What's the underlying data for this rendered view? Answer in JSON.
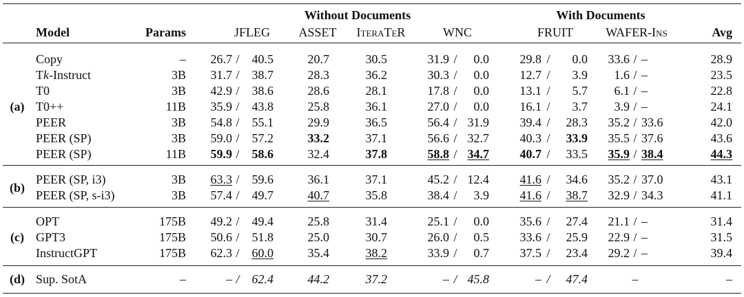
{
  "table": {
    "header": {
      "groups": [
        "Without Documents",
        "With Documents"
      ],
      "columns": [
        {
          "label": "Model",
          "bold": true
        },
        {
          "label": "Params",
          "bold": true
        },
        {
          "label": "JFLEG"
        },
        {
          "label": "ASSET"
        },
        {
          "label": "IteraTeR",
          "smallcaps": true
        },
        {
          "label": "WNC"
        },
        {
          "label": "FRUIT"
        },
        {
          "label": "WAFER-Ins",
          "smallcaps": true
        },
        {
          "label": "Avg",
          "bold": true
        }
      ]
    },
    "separator": "/",
    "groups": [
      {
        "label": "(a)",
        "rows": [
          {
            "model": "Copy",
            "params": "–",
            "cells": [
              [
                "26.7",
                "40.5"
              ],
              "20.7",
              "30.5",
              [
                "31.9",
                "0.0"
              ],
              [
                "29.8",
                "0.0"
              ],
              [
                "33.6",
                "–"
              ],
              "28.9"
            ]
          },
          {
            "model": [
              "T",
              {
                "text": "k",
                "italic": true
              },
              "-Instruct"
            ],
            "params": "3B",
            "cells": [
              [
                "31.7",
                "38.7"
              ],
              "28.3",
              "36.2",
              [
                "30.3",
                "0.0"
              ],
              [
                "12.7",
                "3.9"
              ],
              [
                "1.6",
                "–"
              ],
              "23.5"
            ]
          },
          {
            "model": "T0",
            "params": "3B",
            "cells": [
              [
                "42.9",
                "38.6"
              ],
              "28.6",
              "28.1",
              [
                "17.8",
                "0.0"
              ],
              [
                "13.1",
                "5.7"
              ],
              [
                "6.1",
                "–"
              ],
              "22.8"
            ]
          },
          {
            "model": "T0++",
            "params": "11B",
            "cells": [
              [
                "35.9",
                "43.8"
              ],
              "25.8",
              "36.1",
              [
                "27.0",
                "0.0"
              ],
              [
                "16.1",
                "3.7"
              ],
              [
                "3.9",
                "–"
              ],
              "24.1"
            ]
          },
          {
            "model": "PEER",
            "params": "3B",
            "cells": [
              [
                "54.8",
                "55.1"
              ],
              "29.9",
              "36.5",
              [
                "56.4",
                "31.9"
              ],
              [
                "39.4",
                "28.3"
              ],
              [
                "35.2",
                "33.6"
              ],
              "42.0"
            ]
          },
          {
            "model": "PEER (SP)",
            "params": "3B",
            "cells": [
              [
                "59.0",
                "57.2"
              ],
              {
                "text": "33.2",
                "bold": true
              },
              "37.1",
              [
                "56.6",
                "32.7"
              ],
              [
                "40.3",
                {
                  "text": "33.9",
                  "bold": true
                }
              ],
              [
                "35.5",
                "37.6"
              ],
              "43.6"
            ]
          },
          {
            "model": "PEER (SP)",
            "params": "11B",
            "cells": [
              [
                {
                  "text": "59.9",
                  "bold": true
                },
                {
                  "text": "58.6",
                  "bold": true
                }
              ],
              "32.4",
              {
                "text": "37.8",
                "bold": true
              },
              [
                {
                  "text": "58.8",
                  "bold": true,
                  "underline": true
                },
                {
                  "text": "34.7",
                  "bold": true,
                  "underline": true
                }
              ],
              [
                {
                  "text": "40.7",
                  "bold": true
                },
                "33.5"
              ],
              [
                {
                  "text": "35.9",
                  "bold": true,
                  "underline": true
                },
                {
                  "text": "38.4",
                  "bold": true,
                  "underline": true
                }
              ],
              {
                "text": "44.3",
                "bold": true,
                "underline": true
              }
            ]
          }
        ]
      },
      {
        "label": "(b)",
        "rows": [
          {
            "model": "PEER (SP, i3)",
            "params": "3B",
            "cells": [
              [
                {
                  "text": "63.3",
                  "underline": true
                },
                "59.6"
              ],
              "36.1",
              "37.1",
              [
                "45.2",
                "12.4"
              ],
              [
                {
                  "text": "41.6",
                  "underline": true
                },
                "34.6"
              ],
              [
                "35.2",
                "37.0"
              ],
              "43.1"
            ]
          },
          {
            "model": "PEER (SP, s-i3)",
            "params": "3B",
            "cells": [
              [
                "57.4",
                "49.7"
              ],
              {
                "text": "40.7",
                "underline": true
              },
              "35.8",
              [
                "38.4",
                "3.9"
              ],
              [
                {
                  "text": "41.6",
                  "underline": true
                },
                {
                  "text": "38.7",
                  "underline": true
                }
              ],
              [
                "32.9",
                "34.3"
              ],
              "41.1"
            ]
          }
        ]
      },
      {
        "label": "(c)",
        "rows": [
          {
            "model": "OPT",
            "params": "175B",
            "cells": [
              [
                "49.2",
                "49.4"
              ],
              "25.8",
              "31.4",
              [
                "25.1",
                "0.0"
              ],
              [
                "35.6",
                "27.4"
              ],
              [
                "21.1",
                "–"
              ],
              "31.4"
            ]
          },
          {
            "model": "GPT3",
            "params": "175B",
            "cells": [
              [
                "50.6",
                "51.8"
              ],
              "25.0",
              "30.7",
              [
                "26.0",
                "0.5"
              ],
              [
                "33.6",
                "25.9"
              ],
              [
                "22.9",
                "–"
              ],
              "31.5"
            ]
          },
          {
            "model": "InstructGPT",
            "params": "175B",
            "cells": [
              [
                "62.3",
                {
                  "text": "60.0",
                  "underline": true
                }
              ],
              "35.4",
              {
                "text": "38.2",
                "underline": true
              },
              [
                "33.9",
                "0.7"
              ],
              [
                "37.5",
                "23.4"
              ],
              [
                "29.2",
                "–"
              ],
              "39.4"
            ]
          }
        ]
      },
      {
        "label": "(d)",
        "rows": [
          {
            "model": "Sup. SotA",
            "params": "–",
            "italic": true,
            "cells": [
              [
                "–",
                "62.4"
              ],
              "44.2",
              "37.2",
              [
                "–",
                "45.8"
              ],
              [
                "–",
                "47.4"
              ],
              "–",
              "–"
            ]
          }
        ]
      }
    ]
  }
}
